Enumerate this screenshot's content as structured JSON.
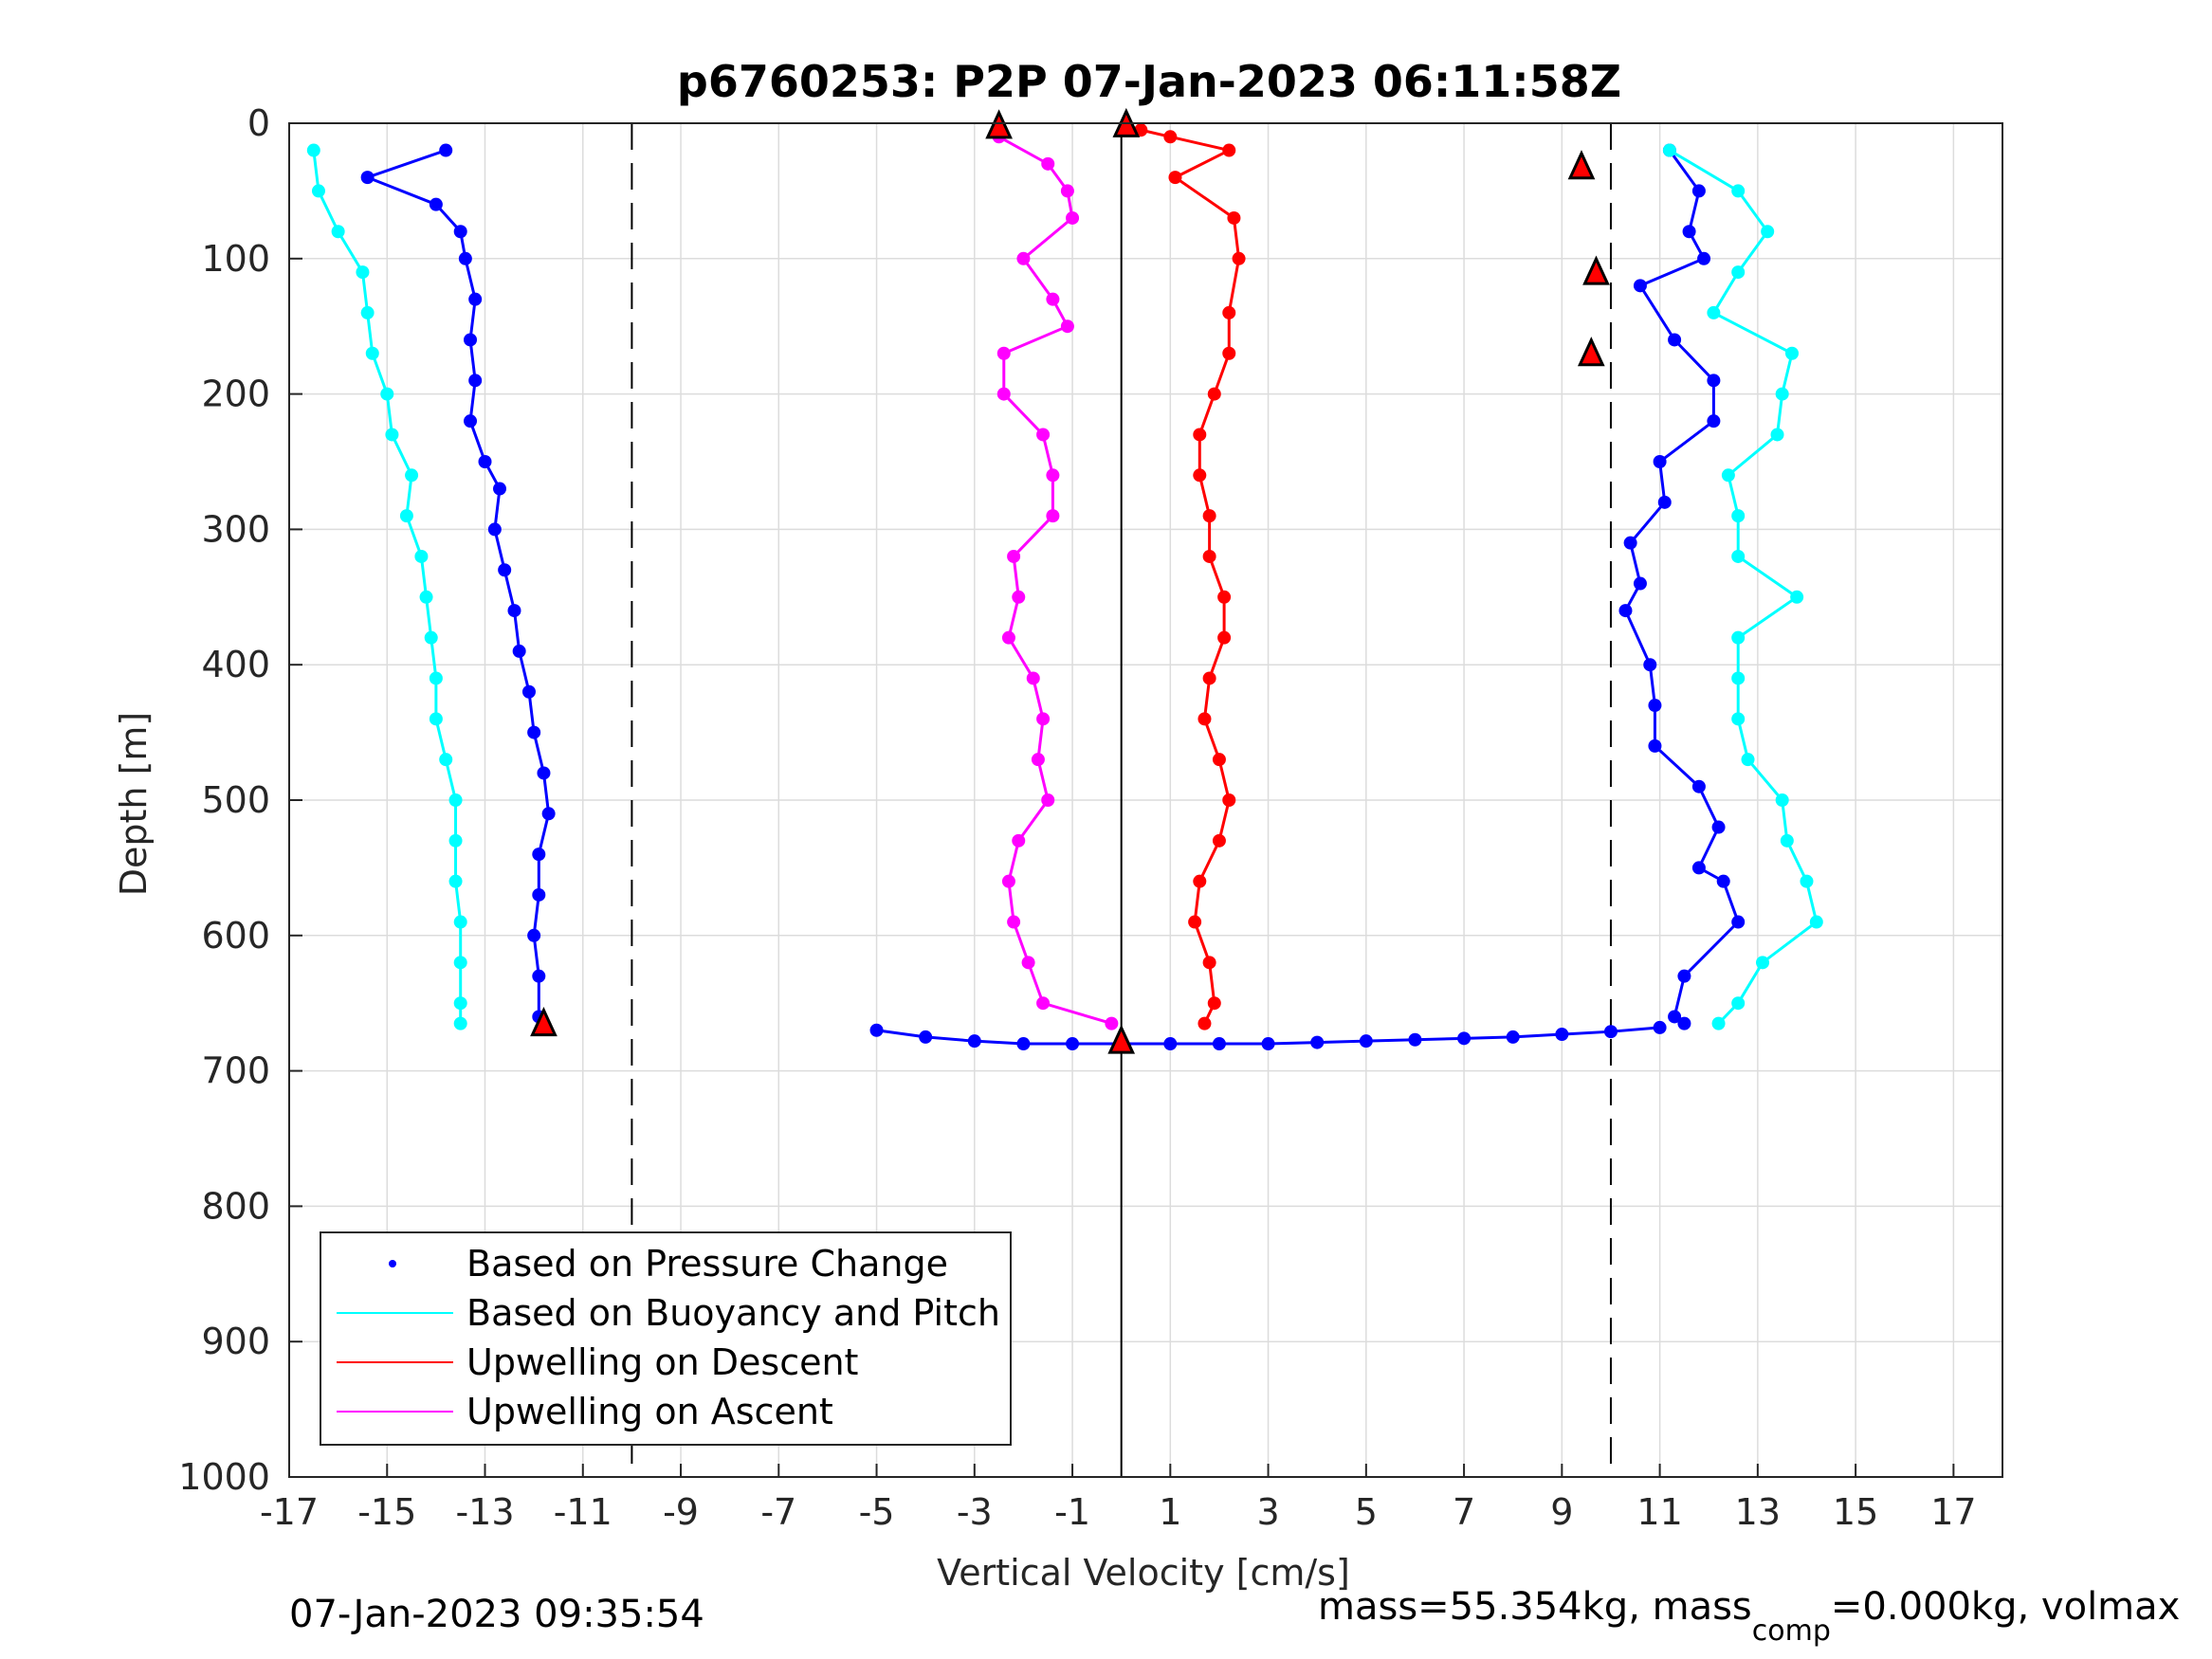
{
  "chart_data": {
    "type": "scatter",
    "title": "p6760253: P2P 07-Jan-2023 06:11:58Z",
    "xlabel": "Vertical Velocity [cm/s]",
    "ylabel": "Depth [m]",
    "xlim": [
      -17,
      18
    ],
    "ylim": [
      0,
      1000
    ],
    "y_reversed": true,
    "grid": true,
    "x_ticks": [
      "-17",
      "-15",
      "-13",
      "-11",
      "-9",
      "-7",
      "-5",
      "-3",
      "-1",
      "1",
      "3",
      "5",
      "7",
      "9",
      "11",
      "13",
      "15",
      "17"
    ],
    "y_ticks": [
      "0",
      "100",
      "200",
      "300",
      "400",
      "500",
      "600",
      "700",
      "800",
      "900",
      "1000"
    ],
    "reference_lines": [
      {
        "x": -10,
        "style": "dashed"
      },
      {
        "x": 0,
        "style": "solid"
      },
      {
        "x": 10,
        "style": "dashed"
      }
    ],
    "legend_position": "bottom-left",
    "legend": [
      {
        "label": "Based on Pressure Change",
        "color": "#0000ff",
        "marker": "dot"
      },
      {
        "label": "Based on Buoyancy and Pitch",
        "color": "#00ffff",
        "marker": "line"
      },
      {
        "label": "Upwelling on Descent",
        "color": "#ff0000",
        "marker": "line"
      },
      {
        "label": "Upwelling on Ascent",
        "color": "#ff00ff",
        "marker": "line"
      }
    ],
    "series": [
      {
        "color": "#0000ff",
        "x_depth_pairs": [
          [
            -13.8,
            20
          ],
          [
            -15.4,
            40
          ],
          [
            -14,
            60
          ],
          [
            -13.5,
            80
          ],
          [
            -13.4,
            100
          ],
          [
            -13.2,
            130
          ],
          [
            -13.3,
            160
          ],
          [
            -13.2,
            190
          ],
          [
            -13.3,
            220
          ],
          [
            -13,
            250
          ],
          [
            -12.7,
            270
          ],
          [
            -12.8,
            300
          ],
          [
            -12.6,
            330
          ],
          [
            -12.4,
            360
          ],
          [
            -12.3,
            390
          ],
          [
            -12.1,
            420
          ],
          [
            -12,
            450
          ],
          [
            -11.8,
            480
          ],
          [
            -11.7,
            510
          ],
          [
            -11.9,
            540
          ],
          [
            -11.9,
            570
          ],
          [
            -12,
            600
          ],
          [
            -11.9,
            630
          ],
          [
            -11.9,
            660
          ]
        ]
      },
      {
        "color": "#0000ff",
        "x_depth_pairs": [
          [
            11.2,
            20
          ],
          [
            11.8,
            50
          ],
          [
            11.6,
            80
          ],
          [
            11.9,
            100
          ],
          [
            10.6,
            120
          ],
          [
            11.3,
            160
          ],
          [
            12.1,
            190
          ],
          [
            12.1,
            220
          ],
          [
            11,
            250
          ],
          [
            11.1,
            280
          ],
          [
            10.4,
            310
          ],
          [
            10.6,
            340
          ],
          [
            10.3,
            360
          ],
          [
            10.8,
            400
          ],
          [
            10.9,
            430
          ],
          [
            10.9,
            460
          ],
          [
            11.8,
            490
          ],
          [
            12.2,
            520
          ],
          [
            11.8,
            550
          ],
          [
            12.3,
            560
          ],
          [
            12.6,
            590
          ],
          [
            11.5,
            630
          ],
          [
            11.3,
            660
          ],
          [
            11.5,
            665
          ]
        ]
      },
      {
        "color": "#00ffff",
        "x_depth_pairs": [
          [
            -16.5,
            20
          ],
          [
            -16.4,
            50
          ],
          [
            -16,
            80
          ],
          [
            -15.5,
            110
          ],
          [
            -15.4,
            140
          ],
          [
            -15.3,
            170
          ],
          [
            -15,
            200
          ],
          [
            -14.9,
            230
          ],
          [
            -14.5,
            260
          ],
          [
            -14.6,
            290
          ],
          [
            -14.3,
            320
          ],
          [
            -14.2,
            350
          ],
          [
            -14.1,
            380
          ],
          [
            -14,
            410
          ],
          [
            -14,
            440
          ],
          [
            -13.8,
            470
          ],
          [
            -13.6,
            500
          ],
          [
            -13.6,
            530
          ],
          [
            -13.6,
            560
          ],
          [
            -13.5,
            590
          ],
          [
            -13.5,
            620
          ],
          [
            -13.5,
            650
          ],
          [
            -13.5,
            665
          ]
        ]
      },
      {
        "color": "#00ffff",
        "x_depth_pairs": [
          [
            11.2,
            20
          ],
          [
            12.6,
            50
          ],
          [
            13.2,
            80
          ],
          [
            12.6,
            110
          ],
          [
            12.1,
            140
          ],
          [
            13.7,
            170
          ],
          [
            13.5,
            200
          ],
          [
            13.4,
            230
          ],
          [
            12.4,
            260
          ],
          [
            12.6,
            290
          ],
          [
            12.6,
            320
          ],
          [
            13.8,
            350
          ],
          [
            12.6,
            380
          ],
          [
            12.6,
            410
          ],
          [
            12.6,
            440
          ],
          [
            12.8,
            470
          ],
          [
            13.5,
            500
          ],
          [
            13.6,
            530
          ],
          [
            14,
            560
          ],
          [
            14.2,
            590
          ],
          [
            13.1,
            620
          ],
          [
            12.6,
            650
          ],
          [
            12.2,
            665
          ]
        ]
      },
      {
        "color": "#ff0000",
        "x_depth_pairs": [
          [
            0.4,
            5
          ],
          [
            1,
            10
          ],
          [
            2.2,
            20
          ],
          [
            1.1,
            40
          ],
          [
            2.3,
            70
          ],
          [
            2.4,
            100
          ],
          [
            2.2,
            140
          ],
          [
            2.2,
            170
          ],
          [
            1.9,
            200
          ],
          [
            1.6,
            230
          ],
          [
            1.6,
            260
          ],
          [
            1.8,
            290
          ],
          [
            1.8,
            320
          ],
          [
            2.1,
            350
          ],
          [
            2.1,
            380
          ],
          [
            1.8,
            410
          ],
          [
            1.7,
            440
          ],
          [
            2,
            470
          ],
          [
            2.2,
            500
          ],
          [
            2,
            530
          ],
          [
            1.6,
            560
          ],
          [
            1.5,
            590
          ],
          [
            1.8,
            620
          ],
          [
            1.9,
            650
          ],
          [
            1.7,
            665
          ]
        ]
      },
      {
        "color": "#ff00ff",
        "x_depth_pairs": [
          [
            -2.5,
            10
          ],
          [
            -1.5,
            30
          ],
          [
            -1.1,
            50
          ],
          [
            -1,
            70
          ],
          [
            -2,
            100
          ],
          [
            -1.4,
            130
          ],
          [
            -1.1,
            150
          ],
          [
            -2.4,
            170
          ],
          [
            -2.4,
            200
          ],
          [
            -1.6,
            230
          ],
          [
            -1.4,
            260
          ],
          [
            -1.4,
            290
          ],
          [
            -2.2,
            320
          ],
          [
            -2.1,
            350
          ],
          [
            -2.3,
            380
          ],
          [
            -1.8,
            410
          ],
          [
            -1.6,
            440
          ],
          [
            -1.7,
            470
          ],
          [
            -1.5,
            500
          ],
          [
            -2.1,
            530
          ],
          [
            -2.3,
            560
          ],
          [
            -2.2,
            590
          ],
          [
            -1.9,
            620
          ],
          [
            -1.6,
            650
          ],
          [
            -0.2,
            665
          ]
        ]
      },
      {
        "color": "#0000ff",
        "x_depth_pairs": [
          [
            -5,
            670
          ],
          [
            -4,
            675
          ],
          [
            -3,
            678
          ],
          [
            -2,
            680
          ],
          [
            -1,
            680
          ],
          [
            0,
            680
          ],
          [
            1,
            680
          ],
          [
            2,
            680
          ],
          [
            3,
            680
          ],
          [
            4,
            679
          ],
          [
            5,
            678
          ],
          [
            6,
            677
          ],
          [
            7,
            676
          ],
          [
            8,
            675
          ],
          [
            9,
            673
          ],
          [
            10,
            671
          ],
          [
            11,
            668
          ]
        ]
      }
    ],
    "markers": [
      {
        "color": "#ff0000",
        "x": -2.5,
        "depth": 2
      },
      {
        "color": "#ff0000",
        "x": 0.1,
        "depth": 1
      },
      {
        "color": "#ff0000",
        "x": 9.4,
        "depth": 32
      },
      {
        "color": "#ff0000",
        "x": 9.7,
        "depth": 110
      },
      {
        "color": "#ff0000",
        "x": 9.6,
        "depth": 170
      },
      {
        "color": "#ff0000",
        "x": -11.8,
        "depth": 665
      },
      {
        "color": "#ff0000",
        "x": 0,
        "depth": 678
      }
    ],
    "extra_text": "mass=55.354kg, mass",
    "extra_text_sub": "comp",
    "extra_text_rest": "=0.000kg, volmax"
  },
  "footer": {
    "timestamp": "07-Jan-2023 09:35:54"
  }
}
